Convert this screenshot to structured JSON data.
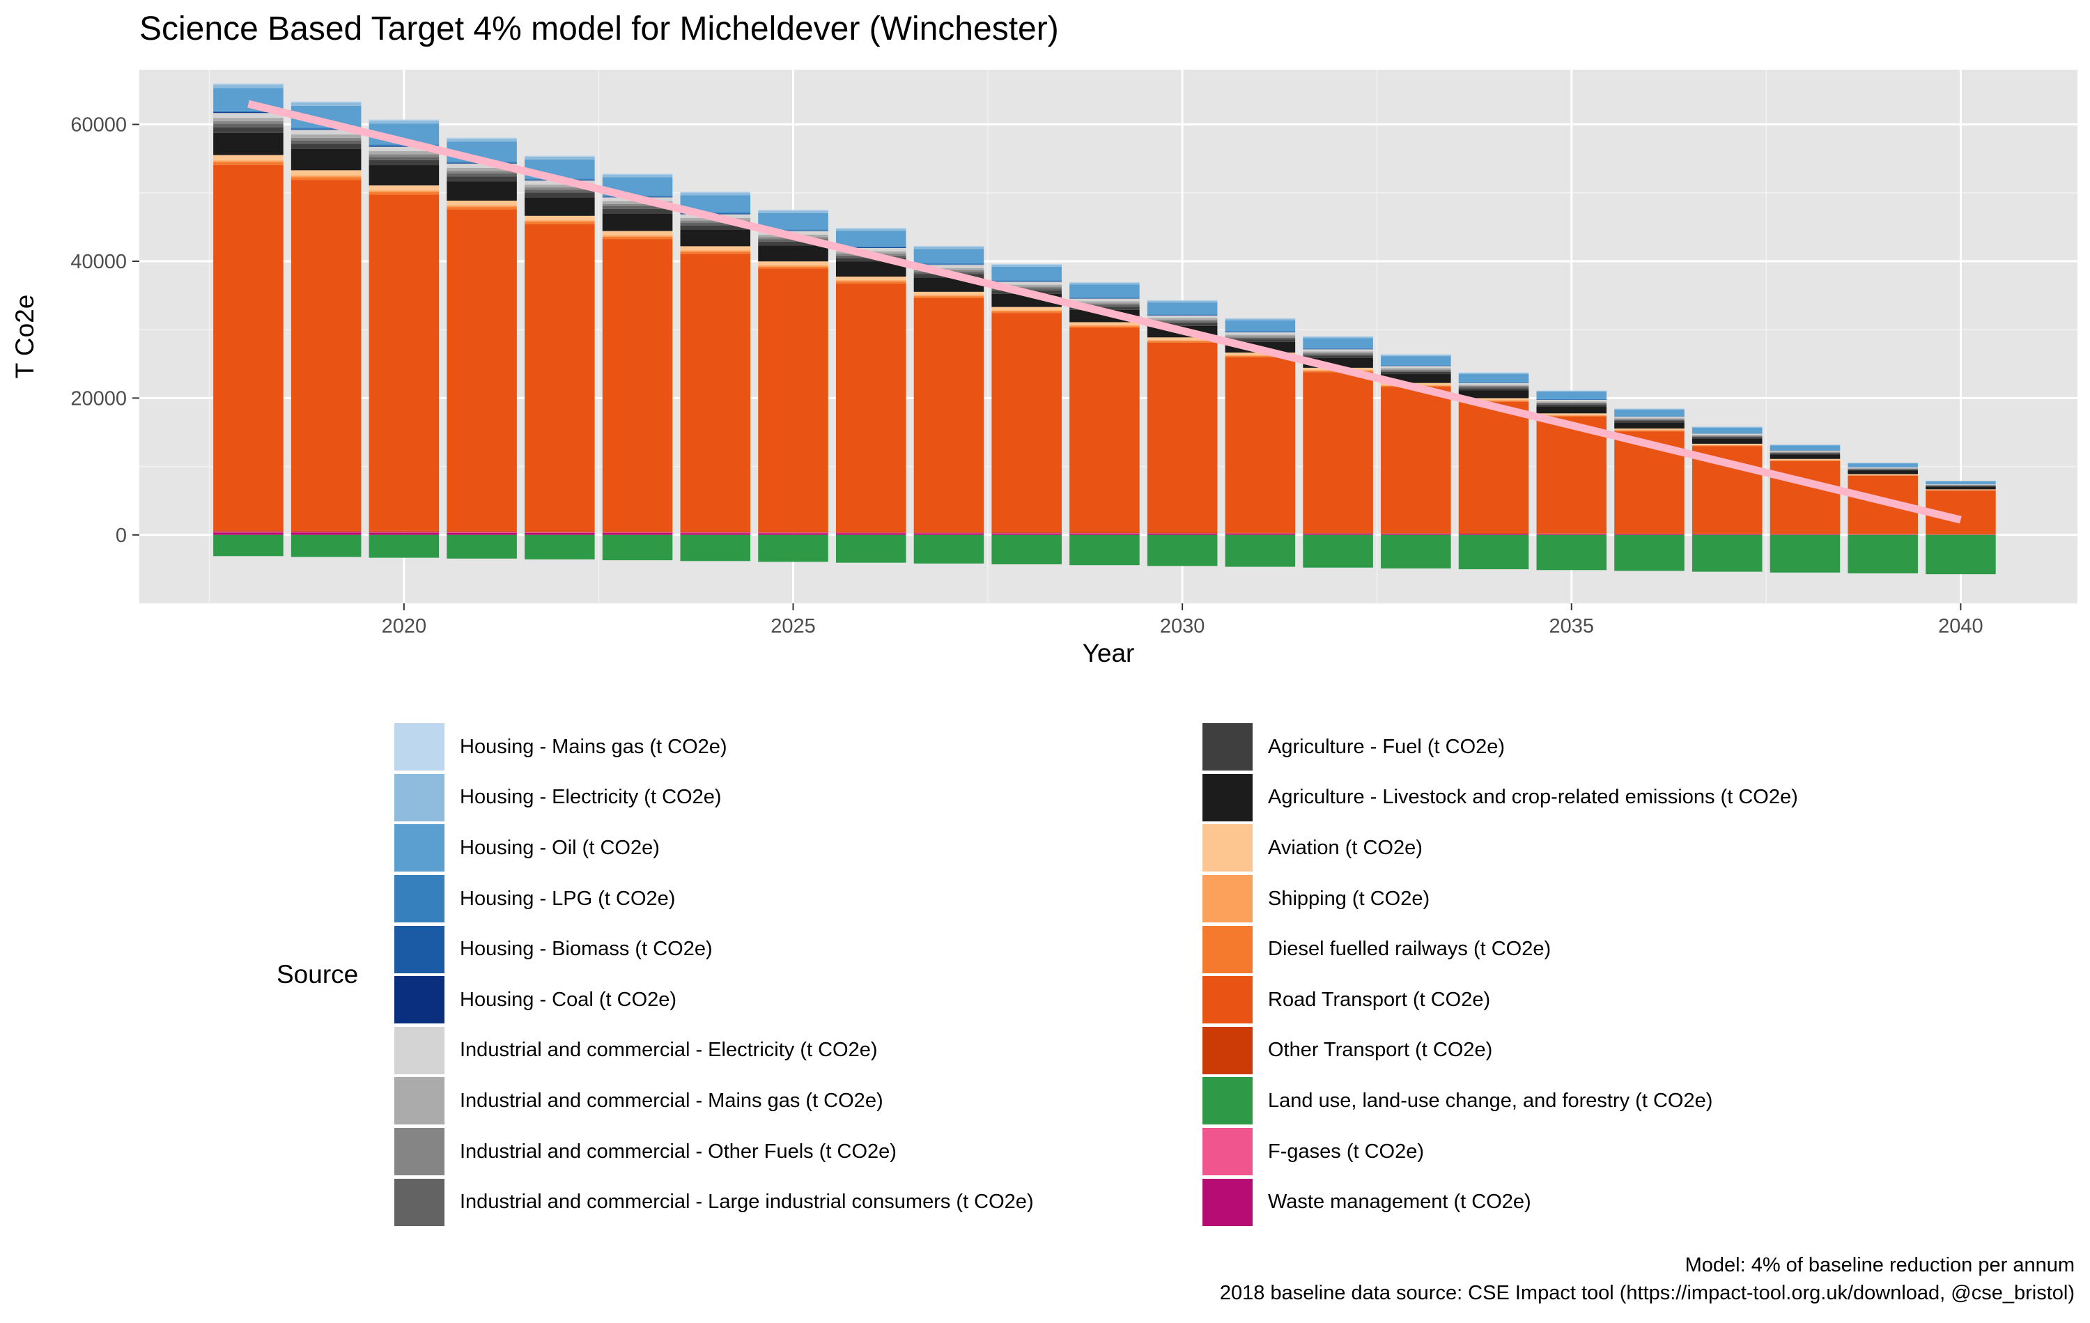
{
  "chart_data": {
    "type": "bar",
    "stacked": true,
    "title": "Science Based Target 4% model for Micheldever (Winchester)",
    "xlabel": "Year",
    "ylabel": "T Co2e",
    "x_ticks": [
      2020,
      2025,
      2030,
      2035,
      2040
    ],
    "y_ticks": [
      0,
      20000,
      40000,
      60000
    ],
    "y_tick_labels": [
      "0",
      "20000",
      "40000",
      "60000"
    ],
    "ylim": [
      -10000,
      68000
    ],
    "xlim": [
      2016.6,
      2041.5
    ],
    "grid": true,
    "legend_title": "Source",
    "legend_position": "bottom",
    "categories": [
      2018,
      2019,
      2020,
      2021,
      2022,
      2023,
      2024,
      2025,
      2026,
      2027,
      2028,
      2029,
      2030,
      2031,
      2032,
      2033,
      2034,
      2035,
      2036,
      2037,
      2038,
      2039,
      2040
    ],
    "base_totals": [
      66000,
      63360,
      60720,
      58080,
      55440,
      52800,
      50160,
      47520,
      44880,
      42240,
      39600,
      36960,
      34320,
      31680,
      29040,
      26400,
      23760,
      21120,
      18480,
      15840,
      13200,
      10560,
      7920
    ],
    "baseline_shares": [
      {
        "name": "Waste management (t CO2e)",
        "value_2018": 350
      },
      {
        "name": "F-gases (t CO2e)",
        "value_2018": 150
      },
      {
        "name": "Other Transport (t CO2e)",
        "value_2018": 150
      },
      {
        "name": "Road Transport (t CO2e)",
        "value_2018": 53000
      },
      {
        "name": "Diesel fuelled railways (t CO2e)",
        "value_2018": 400
      },
      {
        "name": "Shipping (t CO2e)",
        "value_2018": 250
      },
      {
        "name": "Aviation (t CO2e)",
        "value_2018": 800
      },
      {
        "name": "Agriculture - Livestock and crop-related emissions (t CO2e)",
        "value_2018": 3200
      },
      {
        "name": "Agriculture - Fuel (t CO2e)",
        "value_2018": 800
      },
      {
        "name": "Industrial and commercial - Large industrial consumers (t CO2e)",
        "value_2018": 500
      },
      {
        "name": "Industrial and commercial - Other Fuels (t CO2e)",
        "value_2018": 400
      },
      {
        "name": "Industrial and commercial - Mains gas (t CO2e)",
        "value_2018": 500
      },
      {
        "name": "Industrial and commercial - Electricity (t CO2e)",
        "value_2018": 700
      },
      {
        "name": "Housing - Coal (t CO2e)",
        "value_2018": 70
      },
      {
        "name": "Housing - Biomass (t CO2e)",
        "value_2018": 70
      },
      {
        "name": "Housing - LPG (t CO2e)",
        "value_2018": 200
      },
      {
        "name": "Housing - Oil (t CO2e)",
        "value_2018": 3300
      },
      {
        "name": "Housing - Electricity (t CO2e)",
        "value_2018": 500
      },
      {
        "name": "Housing - Mains gas (t CO2e)",
        "value_2018": 160
      }
    ],
    "negative_series": {
      "name": "Land use, land-use change, and forestry (t CO2e)",
      "values": [
        -3100,
        -3220,
        -3340,
        -3460,
        -3580,
        -3700,
        -3820,
        -3940,
        -4060,
        -4180,
        -4300,
        -4420,
        -4540,
        -4660,
        -4780,
        -4900,
        -5020,
        -5140,
        -5260,
        -5380,
        -5500,
        -5620,
        -5740
      ]
    },
    "target_line": {
      "x": [
        2018,
        2040
      ],
      "y": [
        63000,
        2200
      ],
      "color": "#ffb6c8"
    },
    "legend": [
      {
        "name": "Housing - Mains gas (t CO2e)",
        "color": "#bdd7ee"
      },
      {
        "name": "Housing - Electricity (t CO2e)",
        "color": "#8fbcdc"
      },
      {
        "name": "Housing - Oil (t CO2e)",
        "color": "#5b9fd0"
      },
      {
        "name": "Housing - LPG (t CO2e)",
        "color": "#3680bd"
      },
      {
        "name": "Housing - Biomass (t CO2e)",
        "color": "#1b5aa5"
      },
      {
        "name": "Housing - Coal (t CO2e)",
        "color": "#0a2f7e"
      },
      {
        "name": "Industrial and commercial - Electricity (t CO2e)",
        "color": "#d4d4d4"
      },
      {
        "name": "Industrial and commercial - Mains gas (t CO2e)",
        "color": "#ababab"
      },
      {
        "name": "Industrial and commercial - Other Fuels (t CO2e)",
        "color": "#858585"
      },
      {
        "name": "Industrial and commercial - Large industrial consumers (t CO2e)",
        "color": "#636363"
      },
      {
        "name": "Agriculture - Fuel (t CO2e)",
        "color": "#3f3f3f"
      },
      {
        "name": "Agriculture - Livestock and crop-related emissions (t CO2e)",
        "color": "#1c1c1c"
      },
      {
        "name": "Aviation (t CO2e)",
        "color": "#fdc691"
      },
      {
        "name": "Shipping (t CO2e)",
        "color": "#fca15b"
      },
      {
        "name": "Diesel fuelled railways (t CO2e)",
        "color": "#f67a2e"
      },
      {
        "name": "Road Transport (t CO2e)",
        "color": "#e95314"
      },
      {
        "name": "Other Transport (t CO2e)",
        "color": "#cc3a05"
      },
      {
        "name": "Land use, land-use change, and forestry (t CO2e)",
        "color": "#2e9a48"
      },
      {
        "name": "F-gases (t CO2e)",
        "color": "#f0558e"
      },
      {
        "name": "Waste management (t CO2e)",
        "color": "#b70c74"
      }
    ]
  },
  "caption": {
    "line1": "Model: 4% of baseline reduction per annum",
    "line2": "2018 baseline data source: CSE Impact tool (https://impact-tool.org.uk/download, @cse_bristol)"
  }
}
